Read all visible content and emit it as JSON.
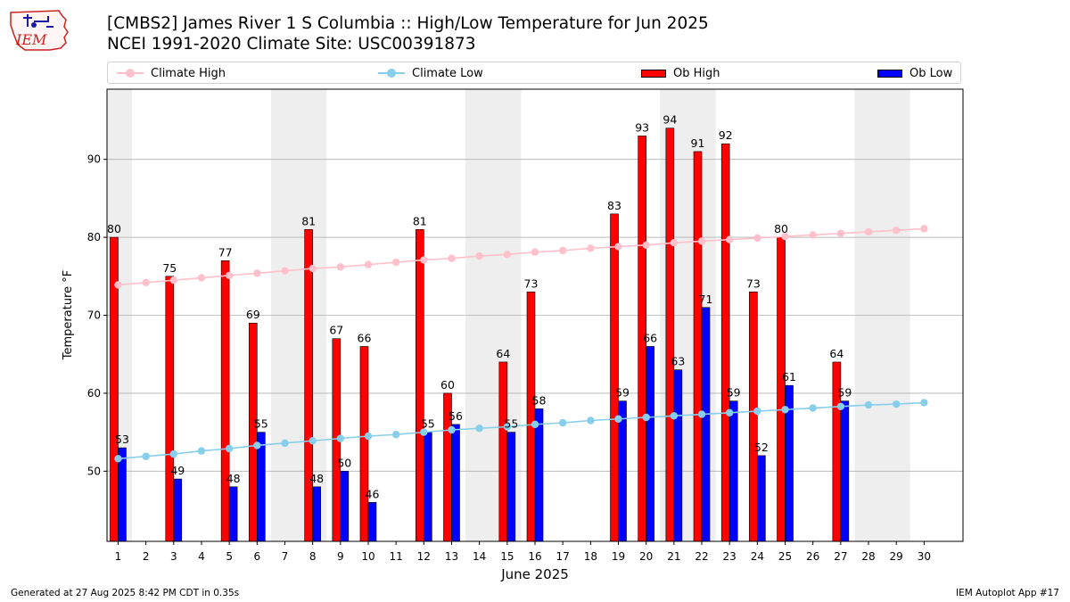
{
  "header": {
    "title_line1": "[CMBS2] James River 1 S Columbia :: High/Low Temperature for Jun 2025",
    "title_line2": "NCEI 1991-2020 Climate Site: USC00391873",
    "logo_text": "IEM"
  },
  "legend": {
    "climate_high": "Climate High",
    "climate_low": "Climate Low",
    "ob_high": "Ob High",
    "ob_low": "Ob Low"
  },
  "footer": {
    "generated": "Generated at 27 Aug 2025 8:42 PM CDT in 0.35s",
    "app": "IEM Autoplot App #17"
  },
  "chart_data": {
    "type": "bar",
    "xlabel": "June 2025",
    "ylabel": "Temperature °F",
    "ylim": [
      41,
      99
    ],
    "yticks": [
      50,
      60,
      70,
      80,
      90
    ],
    "grid": "horizontal",
    "weekend_shading": [
      1,
      7,
      8,
      14,
      15,
      21,
      22,
      28,
      29
    ],
    "days": [
      1,
      2,
      3,
      4,
      5,
      6,
      7,
      8,
      9,
      10,
      11,
      12,
      13,
      14,
      15,
      16,
      17,
      18,
      19,
      20,
      21,
      22,
      23,
      24,
      25,
      26,
      27,
      28,
      29,
      30
    ],
    "ob_high": [
      80,
      null,
      75,
      null,
      77,
      69,
      null,
      81,
      67,
      66,
      null,
      81,
      60,
      null,
      64,
      73,
      null,
      null,
      83,
      93,
      94,
      91,
      92,
      73,
      80,
      null,
      64,
      null,
      null,
      null
    ],
    "ob_low": [
      53,
      null,
      49,
      null,
      48,
      55,
      null,
      48,
      50,
      46,
      null,
      55,
      56,
      null,
      55,
      58,
      null,
      null,
      59,
      66,
      63,
      71,
      59,
      52,
      61,
      null,
      59,
      null,
      null,
      null
    ],
    "climate_high": [
      73.9,
      74.2,
      74.5,
      74.8,
      75.1,
      75.4,
      75.7,
      76.0,
      76.2,
      76.5,
      76.8,
      77.1,
      77.3,
      77.6,
      77.8,
      78.1,
      78.3,
      78.6,
      78.8,
      79.0,
      79.3,
      79.5,
      79.7,
      79.9,
      80.1,
      80.3,
      80.5,
      80.7,
      80.9,
      81.1
    ],
    "climate_low": [
      51.6,
      51.9,
      52.2,
      52.6,
      52.9,
      53.3,
      53.6,
      53.9,
      54.2,
      54.5,
      54.7,
      55.0,
      55.3,
      55.5,
      55.7,
      56.0,
      56.2,
      56.5,
      56.7,
      56.9,
      57.1,
      57.3,
      57.5,
      57.7,
      57.9,
      58.1,
      58.3,
      58.5,
      58.6,
      58.8
    ],
    "colors": {
      "ob_high": "#ff0000",
      "ob_low": "#0000ff",
      "climate_high": "#ffc0cb",
      "climate_low": "#87ceeb",
      "weekend": "#eeeeee",
      "grid": "#b0b0b0"
    }
  }
}
